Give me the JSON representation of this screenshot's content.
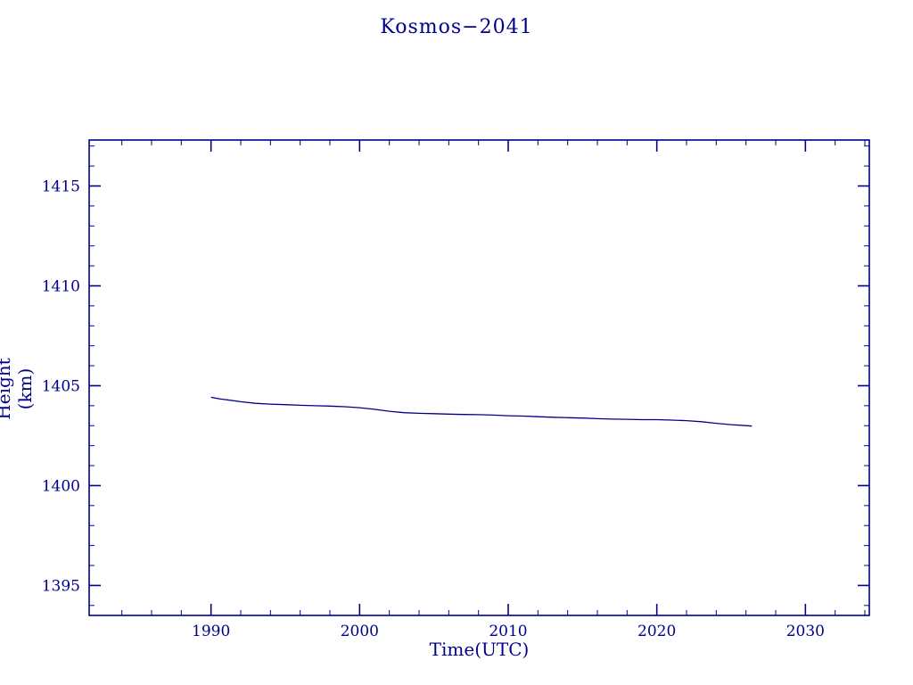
{
  "page": {
    "background": "#ffffff"
  },
  "chart_data": {
    "type": "line",
    "title": "Kosmos−2041",
    "xlabel": "Time(UTC)",
    "ylabel": "Height (km)",
    "xlim": [
      1981.8,
      2034.3
    ],
    "ylim": [
      1393.5,
      1417.3
    ],
    "x_ticks": [
      1990,
      2000,
      2010,
      2020,
      2030
    ],
    "y_ticks": [
      1395,
      1400,
      1405,
      1410,
      1415
    ],
    "x_minor_step": 2,
    "y_minor_step": 1,
    "grid": false,
    "legend_position": "none",
    "axis_color": "#00008b",
    "text_color": "#00008b",
    "series": [
      {
        "name": "height",
        "color": "#00008b",
        "points": [
          [
            1990.0,
            1404.42
          ],
          [
            1990.5,
            1404.35
          ],
          [
            1991.0,
            1404.3
          ],
          [
            1992.0,
            1404.2
          ],
          [
            1993.0,
            1404.12
          ],
          [
            1994.0,
            1404.08
          ],
          [
            1995.0,
            1404.05
          ],
          [
            1996.0,
            1404.02
          ],
          [
            1997.0,
            1404.0
          ],
          [
            1998.0,
            1403.98
          ],
          [
            1999.0,
            1403.95
          ],
          [
            2000.0,
            1403.9
          ],
          [
            2001.0,
            1403.82
          ],
          [
            2002.0,
            1403.72
          ],
          [
            2003.0,
            1403.65
          ],
          [
            2004.0,
            1403.62
          ],
          [
            2005.0,
            1403.6
          ],
          [
            2006.0,
            1403.58
          ],
          [
            2007.0,
            1403.56
          ],
          [
            2008.0,
            1403.55
          ],
          [
            2009.0,
            1403.53
          ],
          [
            2010.0,
            1403.5
          ],
          [
            2011.0,
            1403.48
          ],
          [
            2012.0,
            1403.45
          ],
          [
            2013.0,
            1403.42
          ],
          [
            2014.0,
            1403.4
          ],
          [
            2015.0,
            1403.38
          ],
          [
            2016.0,
            1403.35
          ],
          [
            2017.0,
            1403.33
          ],
          [
            2018.0,
            1403.32
          ],
          [
            2019.0,
            1403.3
          ],
          [
            2020.0,
            1403.3
          ],
          [
            2021.0,
            1403.28
          ],
          [
            2022.0,
            1403.25
          ],
          [
            2023.0,
            1403.2
          ],
          [
            2024.0,
            1403.12
          ],
          [
            2025.0,
            1403.05
          ],
          [
            2026.0,
            1403.0
          ],
          [
            2026.4,
            1402.98
          ]
        ]
      }
    ]
  }
}
